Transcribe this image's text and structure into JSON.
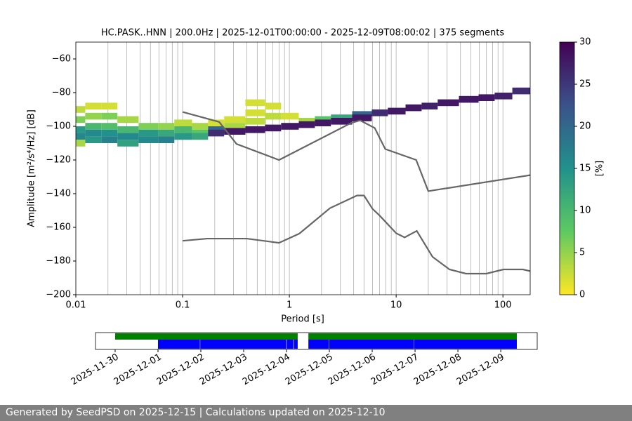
{
  "chart_data": [
    {
      "type": "ppsd",
      "title": "HC.PASK..HNN | 200.0Hz | 2025-12-01T00:00:00 - 2025-12-09T08:00:02 | 375 segments",
      "x_label": "Period [s]",
      "y_label": "Amplitude [m²/s⁴/Hz] [dB]",
      "xscale": "log",
      "xlim": [
        0.01,
        180
      ],
      "xticks": [
        0.01,
        0.1,
        1,
        10,
        100
      ],
      "xminorticks": [
        0.02,
        0.03,
        0.04,
        0.05,
        0.06,
        0.07,
        0.08,
        0.09,
        0.2,
        0.3,
        0.4,
        0.5,
        0.6,
        0.7,
        0.8,
        0.9,
        2,
        3,
        4,
        5,
        6,
        7,
        8,
        9,
        20,
        30,
        40,
        50,
        60,
        70,
        80,
        90
      ],
      "ylim": [
        -200,
        -50
      ],
      "yticks": [
        {
          "value": -200,
          "label": "−200"
        },
        {
          "value": -180,
          "label": "−180"
        },
        {
          "value": -160,
          "label": "−160"
        },
        {
          "value": -140,
          "label": "−140"
        },
        {
          "value": -120,
          "label": "−120"
        },
        {
          "value": -100,
          "label": "−100"
        },
        {
          "value": -80,
          "label": "−80"
        },
        {
          "value": -60,
          "label": "−60"
        }
      ],
      "grid": "x",
      "cells": {
        "x": [
          0.01,
          0.01,
          0.01,
          0.01,
          0.01,
          0.015,
          0.015,
          0.015,
          0.015,
          0.015,
          0.02,
          0.02,
          0.02,
          0.02,
          0.02,
          0.03,
          0.03,
          0.03,
          0.03,
          0.05,
          0.05,
          0.05,
          0.07,
          0.07,
          0.07,
          0.1,
          0.1,
          0.1,
          0.15,
          0.15,
          0.15,
          0.2,
          0.2,
          0.2,
          0.3,
          0.3,
          0.3,
          0.5,
          0.5,
          0.5,
          0.5,
          0.7,
          0.7,
          0.7,
          1,
          1,
          1.5,
          1.5,
          2,
          2,
          3,
          3,
          5,
          5,
          7,
          10,
          15,
          20,
          30,
          50,
          70,
          100,
          150
        ],
        "y": [
          -90,
          -96,
          -102,
          -106,
          -110,
          -88,
          -94,
          -100,
          -104,
          -108,
          -88,
          -94,
          -100,
          -104,
          -108,
          -96,
          -102,
          -106,
          -110,
          -100,
          -104,
          -108,
          -100,
          -104,
          -108,
          -98,
          -102,
          -106,
          -100,
          -104,
          -106,
          -98,
          -102,
          -104,
          -96,
          -100,
          -103,
          -86,
          -92,
          -97,
          -102,
          -88,
          -94,
          -101,
          -94,
          -100,
          -97,
          -99,
          -96,
          -98,
          -95,
          -97,
          -93,
          -95,
          -92,
          -91,
          -89,
          -88,
          -86,
          -84,
          -83,
          -82,
          -79
        ],
        "values": [
          3,
          6,
          14,
          16,
          4,
          2,
          5,
          10,
          16,
          14,
          2,
          6,
          9,
          15,
          17,
          4,
          10,
          16,
          13,
          6,
          14,
          16,
          5,
          12,
          17,
          3,
          10,
          14,
          4,
          8,
          12,
          2,
          20,
          26,
          2,
          4,
          28,
          2,
          2,
          3,
          28,
          2,
          3,
          28,
          2,
          28,
          4,
          28,
          8,
          28,
          12,
          28,
          20,
          28,
          26,
          28,
          28,
          27,
          28,
          28,
          28,
          27,
          26
        ]
      },
      "series": [
        {
          "name": "NHNM",
          "color": "#666666",
          "x": [
            0.1,
            0.22,
            0.32,
            0.8,
            3.8,
            4.6,
            6.3,
            7.9,
            15.4,
            20,
            180
          ],
          "values": [
            -91.5,
            -97.4,
            -110.5,
            -120,
            -98,
            -96.5,
            -101,
            -113.5,
            -120,
            -138.5,
            -129
          ]
        },
        {
          "name": "NLNM",
          "color": "#666666",
          "x": [
            0.1,
            0.17,
            0.4,
            0.8,
            1.24,
            2.4,
            4.3,
            5,
            6,
            7,
            10,
            12,
            15.6,
            21.9,
            31.6,
            45,
            70,
            101,
            154,
            180
          ],
          "values": [
            -168,
            -166.7,
            -166.7,
            -169.2,
            -163.7,
            -148.6,
            -141.1,
            -141.1,
            -149,
            -153,
            -163.5,
            -166,
            -162.1,
            -177.5,
            -185,
            -187.5,
            -187.5,
            -185,
            -185,
            -186
          ]
        }
      ],
      "colorbar": {
        "colormap": "viridis_r",
        "lim": [
          0,
          30
        ],
        "ticks": [
          0,
          5,
          10,
          15,
          20,
          25,
          30
        ],
        "label": "[%]"
      }
    },
    {
      "type": "availability",
      "xlim": [
        "2025-11-29T13:00:00",
        "2025-12-09T20:25:00"
      ],
      "xticks": [
        "2025-11-30",
        "2025-12-01",
        "2025-12-02",
        "2025-12-03",
        "2025-12-04",
        "2025-12-05",
        "2025-12-06",
        "2025-12-07",
        "2025-12-08",
        "2025-12-09"
      ],
      "series": [
        {
          "color": "#008000",
          "intervals": [
            [
              "2025-11-30T00:00:00",
              "2025-12-04T06:15:00"
            ],
            [
              "2025-12-04T12:15:00",
              "2025-12-09T09:00:00"
            ]
          ]
        },
        {
          "color": "#0000ff",
          "intervals": [
            [
              "2025-12-01T00:00:00",
              "2025-12-01T23:30:00"
            ],
            [
              "2025-12-01T23:40:00",
              "2025-12-03T23:50:00"
            ],
            [
              "2025-12-04T00:05:00",
              "2025-12-04T03:50:00"
            ],
            [
              "2025-12-04T04:05:00",
              "2025-12-04T06:15:00"
            ],
            [
              "2025-12-04T12:15:00",
              "2025-12-04T23:35:00"
            ],
            [
              "2025-12-04T23:45:00",
              "2025-12-06T23:25:00"
            ],
            [
              "2025-12-06T23:35:00",
              "2025-12-09T09:00:00"
            ]
          ]
        }
      ]
    }
  ],
  "footer": "Generated by SeedPSD on 2025-12-15 | Calculations updated on 2025-12-10"
}
